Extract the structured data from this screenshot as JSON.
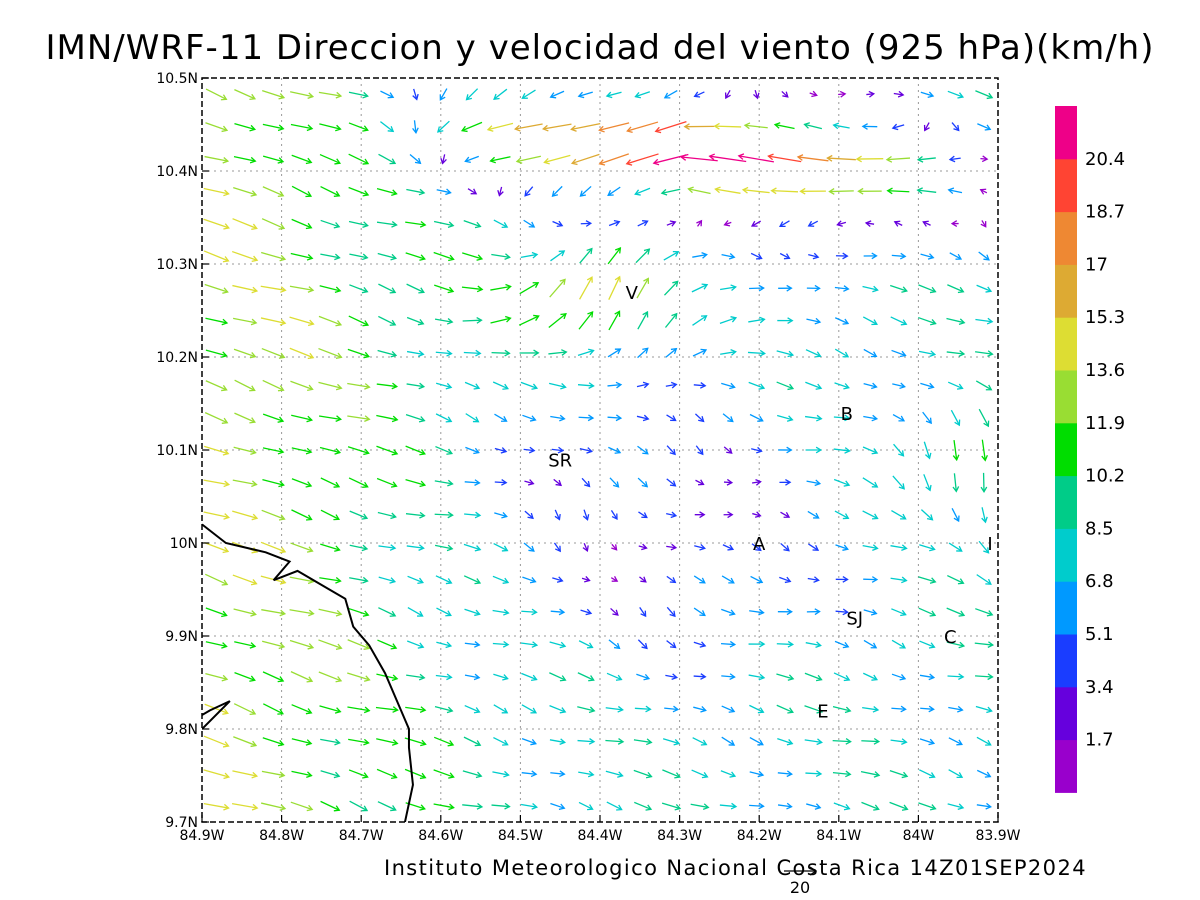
{
  "chart_data": {
    "type": "vector-field-map",
    "title": "IMN/WRF-11 Direccion y velocidad del viento (925 hPa)(km/h)",
    "credit": "Instituto Meteorologico Nacional Costa Rica 14Z01SEP2024",
    "units": "km/h",
    "level_hPa": 925,
    "valid_time": "14Z01SEP2024",
    "x_axis": {
      "range": [
        -84.9,
        -83.9
      ],
      "ticks": [
        -84.9,
        -84.8,
        -84.7,
        -84.6,
        -84.5,
        -84.4,
        -84.3,
        -84.2,
        -84.1,
        -84.0,
        -83.9
      ],
      "tick_labels": [
        "84.9W",
        "84.8W",
        "84.7W",
        "84.6W",
        "84.5W",
        "84.4W",
        "84.3W",
        "84.2W",
        "84.1W",
        "84W",
        "83.9W"
      ]
    },
    "y_axis": {
      "range": [
        9.7,
        10.5
      ],
      "ticks": [
        9.7,
        9.8,
        9.9,
        10.0,
        10.1,
        10.2,
        10.3,
        10.4,
        10.5
      ],
      "tick_labels": [
        "9.7N",
        "9.8N",
        "9.9N",
        "10N",
        "10.1N",
        "10.2N",
        "10.3N",
        "10.4N",
        "10.5N"
      ]
    },
    "grid": true,
    "colorbar": {
      "colors": [
        "#9900cc",
        "#6600dd",
        "#1a3dff",
        "#0099ff",
        "#00cccc",
        "#00cc88",
        "#00dd00",
        "#99dd33",
        "#dddd33",
        "#ddaa33",
        "#ee8833",
        "#ff4433",
        "#ee0088"
      ],
      "labels": [
        "1.7",
        "3.4",
        "5.1",
        "6.8",
        "8.5",
        "10.2",
        "11.9",
        "13.6",
        "15.3",
        "17",
        "18.7",
        "20.4"
      ]
    },
    "reference_vector": {
      "label": "20",
      "speed": 20
    },
    "locations": [
      {
        "label": "V",
        "lon": -84.36,
        "lat": 10.27
      },
      {
        "label": "B",
        "lon": -84.09,
        "lat": 10.14
      },
      {
        "label": "SR",
        "lon": -84.45,
        "lat": 10.09
      },
      {
        "label": "A",
        "lon": -84.2,
        "lat": 10.0
      },
      {
        "label": "I",
        "lon": -83.91,
        "lat": 10.0
      },
      {
        "label": "SJ",
        "lon": -84.08,
        "lat": 9.92
      },
      {
        "label": "C",
        "lon": -83.96,
        "lat": 9.9
      },
      {
        "label": "E",
        "lon": -84.12,
        "lat": 9.82
      }
    ],
    "coastline": [
      [
        -84.9,
        10.02
      ],
      [
        -84.87,
        10.0
      ],
      [
        -84.82,
        9.99
      ],
      [
        -84.79,
        9.98
      ],
      [
        -84.81,
        9.96
      ],
      [
        -84.78,
        9.97
      ],
      [
        -84.74,
        9.95
      ],
      [
        -84.72,
        9.94
      ],
      [
        -84.71,
        9.91
      ],
      [
        -84.69,
        9.89
      ],
      [
        -84.67,
        9.86
      ],
      [
        -84.65,
        9.82
      ],
      [
        -84.64,
        9.8
      ],
      [
        -84.64,
        9.78
      ],
      [
        -84.635,
        9.74
      ],
      [
        -84.645,
        9.7
      ]
    ],
    "coastline_south": [
      [
        -84.9,
        9.8
      ],
      [
        -84.865,
        9.83
      ],
      [
        -84.89,
        9.82
      ],
      [
        -84.9,
        9.815
      ]
    ],
    "wind_field_grid": {
      "nx": 28,
      "ny": 23,
      "max_speed": 22
    }
  }
}
